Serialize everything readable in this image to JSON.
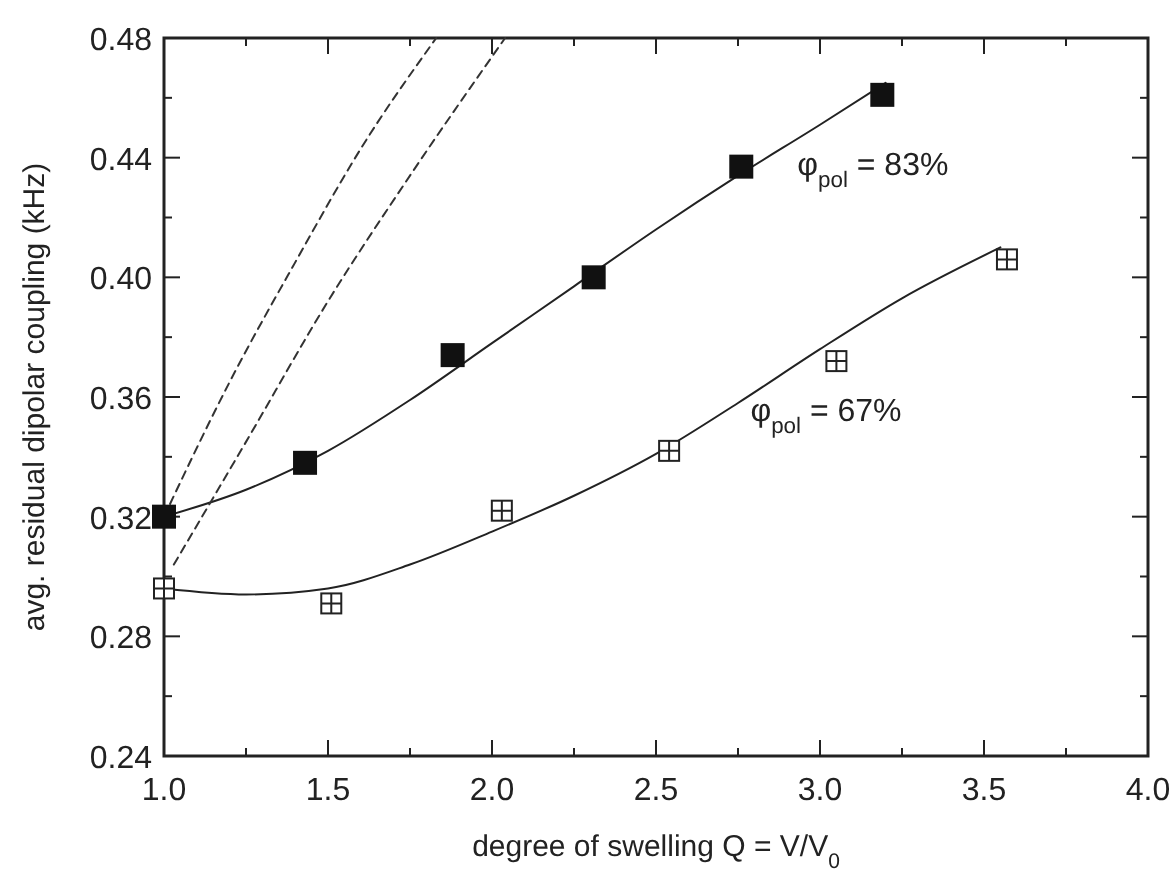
{
  "chart_data": {
    "type": "scatter",
    "xlabel": "degree of swelling Q = V/V$_{0}$",
    "ylabel": "avg. residual dipolar coupling  (kHz)",
    "xlim": [
      1.0,
      4.0
    ],
    "ylim": [
      0.24,
      0.48
    ],
    "xticks": [
      {
        "value": 1,
        "label": "1.0"
      },
      {
        "value": 1.25,
        "label": null
      },
      {
        "value": 1.5,
        "label": "1.5"
      },
      {
        "value": 1.75,
        "label": null
      },
      {
        "value": 2,
        "label": "2.0"
      },
      {
        "value": 2.25,
        "label": null
      },
      {
        "value": 2.5,
        "label": "2.5"
      },
      {
        "value": 2.75,
        "label": null
      },
      {
        "value": 3,
        "label": "3.0"
      },
      {
        "value": 3.25,
        "label": null
      },
      {
        "value": 3.5,
        "label": "3.5"
      },
      {
        "value": 3.75,
        "label": null
      },
      {
        "value": 4,
        "label": "4.0"
      }
    ],
    "yticks": [
      0.24,
      {
        "value": 0.26,
        "label": null
      },
      0.28,
      {
        "value": 0.3,
        "label": null
      },
      0.32,
      {
        "value": 0.34,
        "label": null
      },
      0.36,
      {
        "value": 0.38,
        "label": null
      },
      {
        "value": 0.4,
        "label": "0.40"
      },
      {
        "value": 0.42,
        "label": null
      },
      0.44,
      {
        "value": 0.46,
        "label": null
      },
      0.48
    ],
    "grid": false,
    "series": [
      {
        "type": "scatter",
        "marker": "square",
        "color": "#111111",
        "x": [
          1.0,
          1.43,
          1.88,
          2.31,
          2.76,
          3.19
        ],
        "values": [
          0.32,
          0.338,
          0.374,
          0.4,
          0.437,
          0.461
        ]
      },
      {
        "type": "scatter",
        "marker": "square",
        "color": "#ffffff",
        "x": [
          1.0,
          1.51,
          2.03,
          2.54,
          3.05,
          3.57
        ],
        "values": [
          0.296,
          0.291,
          0.322,
          0.342,
          0.372,
          0.406
        ]
      },
      {
        "type": "line",
        "line_style": "solid",
        "color": "#222222",
        "x": [
          1.0,
          1.25,
          1.5,
          1.75,
          2.0,
          2.25,
          2.5,
          2.75,
          3.0,
          3.2
        ],
        "values": [
          0.32,
          0.329,
          0.342,
          0.359,
          0.378,
          0.397,
          0.416,
          0.434,
          0.451,
          0.465
        ]
      },
      {
        "type": "line",
        "line_style": "solid",
        "color": "#222222",
        "x": [
          1.0,
          1.25,
          1.5,
          1.75,
          2.0,
          2.25,
          2.5,
          2.75,
          3.0,
          3.25,
          3.55
        ],
        "values": [
          0.296,
          0.294,
          0.296,
          0.304,
          0.315,
          0.327,
          0.341,
          0.358,
          0.376,
          0.393,
          0.41
        ]
      },
      {
        "type": "line",
        "line_style": "dashed",
        "color": "#333333",
        "x": [
          1.0,
          1.2,
          1.4,
          1.6,
          1.83
        ],
        "values": [
          0.32,
          0.365,
          0.405,
          0.443,
          0.48
        ]
      },
      {
        "type": "line",
        "line_style": "dashed",
        "color": "#333333",
        "x": [
          1.03,
          1.25,
          1.5,
          1.75,
          2.04
        ],
        "values": [
          0.304,
          0.345,
          0.392,
          0.434,
          0.48
        ]
      }
    ],
    "annotations": [
      "φ$_{pol}$ = 83%",
      "φ$_{pol}$ = 67%"
    ]
  }
}
